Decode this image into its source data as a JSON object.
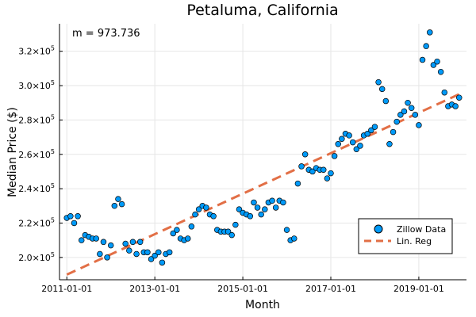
{
  "chart_data": {
    "type": "scatter",
    "title": "Petaluma, California",
    "xlabel": "Month",
    "ylabel": "Median Price ($)",
    "annotation": "m = 973.736",
    "xlim": [
      "2010-11-01",
      "2020-02-01"
    ],
    "ylim": [
      187000,
      336000
    ],
    "y_ticks": [
      200000,
      220000,
      240000,
      260000,
      280000,
      300000,
      320000
    ],
    "y_tick_labels": [
      {
        "mantissa": "2.0×10",
        "exponent": "5"
      },
      {
        "mantissa": "2.2×10",
        "exponent": "5"
      },
      {
        "mantissa": "2.4×10",
        "exponent": "5"
      },
      {
        "mantissa": "2.6×10",
        "exponent": "5"
      },
      {
        "mantissa": "2.8×10",
        "exponent": "5"
      },
      {
        "mantissa": "3.0×10",
        "exponent": "5"
      },
      {
        "mantissa": "3.2×10",
        "exponent": "5"
      }
    ],
    "x_ticks": [
      "2011-01-01",
      "2013-01-01",
      "2015-01-01",
      "2017-01-01",
      "2019-01-01"
    ],
    "grid": true,
    "legend_position": "bottom-right",
    "series": [
      {
        "name": "Zillow Data",
        "kind": "scatter",
        "color": "#009af9",
        "x": [
          "2011-01",
          "2011-02",
          "2011-03",
          "2011-04",
          "2011-05",
          "2011-06",
          "2011-07",
          "2011-08",
          "2011-09",
          "2011-10",
          "2011-11",
          "2011-12",
          "2012-01",
          "2012-02",
          "2012-03",
          "2012-04",
          "2012-05",
          "2012-06",
          "2012-07",
          "2012-08",
          "2012-09",
          "2012-10",
          "2012-11",
          "2012-12",
          "2013-01",
          "2013-02",
          "2013-03",
          "2013-04",
          "2013-05",
          "2013-06",
          "2013-07",
          "2013-08",
          "2013-09",
          "2013-10",
          "2013-11",
          "2013-12",
          "2014-01",
          "2014-02",
          "2014-03",
          "2014-04",
          "2014-05",
          "2014-06",
          "2014-07",
          "2014-08",
          "2014-09",
          "2014-10",
          "2014-11",
          "2014-12",
          "2015-01",
          "2015-02",
          "2015-03",
          "2015-04",
          "2015-05",
          "2015-06",
          "2015-07",
          "2015-08",
          "2015-09",
          "2015-10",
          "2015-11",
          "2015-12",
          "2016-01",
          "2016-02",
          "2016-03",
          "2016-04",
          "2016-05",
          "2016-06",
          "2016-07",
          "2016-08",
          "2016-09",
          "2016-10",
          "2016-11",
          "2016-12",
          "2017-01",
          "2017-02",
          "2017-03",
          "2017-04",
          "2017-05",
          "2017-06",
          "2017-07",
          "2017-08",
          "2017-09",
          "2017-10",
          "2017-11",
          "2017-12",
          "2018-01",
          "2018-02",
          "2018-03",
          "2018-04",
          "2018-05",
          "2018-06",
          "2018-07",
          "2018-08",
          "2018-09",
          "2018-10",
          "2018-11",
          "2018-12",
          "2019-01",
          "2019-02",
          "2019-03",
          "2019-04",
          "2019-05",
          "2019-06",
          "2019-07",
          "2019-08",
          "2019-09",
          "2019-10",
          "2019-11",
          "2019-12"
        ],
        "y": [
          223000,
          224000,
          220000,
          224000,
          210000,
          213000,
          212000,
          211000,
          211000,
          202000,
          209000,
          200000,
          207000,
          230000,
          234000,
          231000,
          208000,
          204000,
          209000,
          202000,
          209000,
          203000,
          203000,
          199000,
          201000,
          203000,
          197000,
          202000,
          203000,
          214000,
          216000,
          211000,
          210000,
          211000,
          218000,
          225000,
          228000,
          230000,
          229000,
          225000,
          224000,
          216000,
          215000,
          215000,
          215000,
          213000,
          219000,
          228000,
          226000,
          225000,
          224000,
          232000,
          229000,
          225000,
          228000,
          232000,
          233000,
          229000,
          233000,
          232000,
          216000,
          210000,
          211000,
          243000,
          253000,
          260000,
          251000,
          250000,
          252000,
          251000,
          251000,
          246000,
          249000,
          259000,
          266000,
          269000,
          272000,
          271000,
          267000,
          263000,
          265000,
          271000,
          272000,
          274000,
          276000,
          302000,
          298000,
          291000,
          266000,
          273000,
          279000,
          283000,
          285000,
          290000,
          287000,
          283000,
          277000,
          315000,
          323000,
          331000,
          312000,
          314000,
          308000,
          296000,
          288000,
          289000,
          288000,
          293000
        ]
      },
      {
        "name": "Lin. Reg",
        "kind": "line",
        "color": "#e26f46",
        "dash": "dashed",
        "x": [
          "2011-01",
          "2019-12"
        ],
        "y": [
          190000,
          295000
        ]
      }
    ]
  }
}
